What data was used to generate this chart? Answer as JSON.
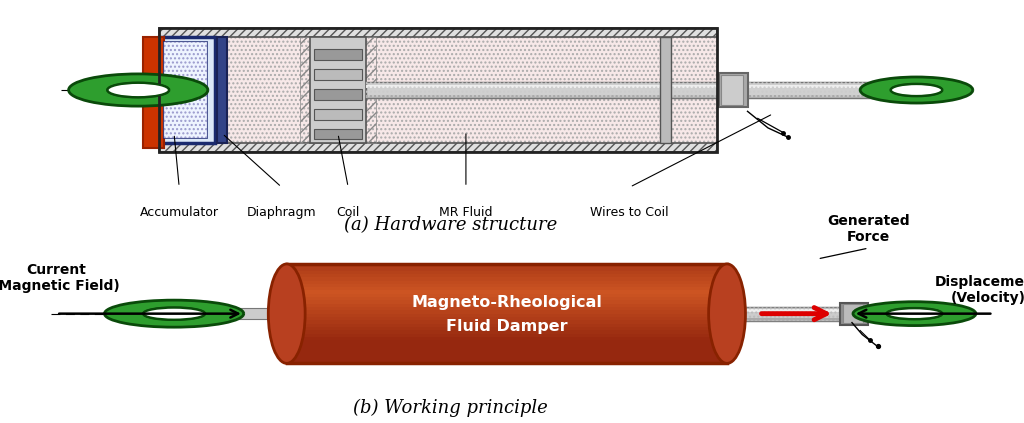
{
  "bg_color": "#ffffff",
  "title_a": "(a) Hardware structure",
  "title_b": "(b) Working principle",
  "labels_a": [
    "Accumulator",
    "Diaphragm",
    "Coil",
    "MR Fluid",
    "Wires to Coil"
  ],
  "green_ring_color": "#2e9e2e",
  "green_ring_dark": "#0a4a0a",
  "orange_mid": "#d4622a",
  "orange_top": "#c04818",
  "orange_highlight": "#e8825a",
  "label_b_current": "Current\n(Magnetic Field)",
  "label_b_displacement": "Displacement\n(Velocity)",
  "label_b_force": "Generated\nForce",
  "label_b_damper": "Magneto-Rheological\nFluid Damper"
}
